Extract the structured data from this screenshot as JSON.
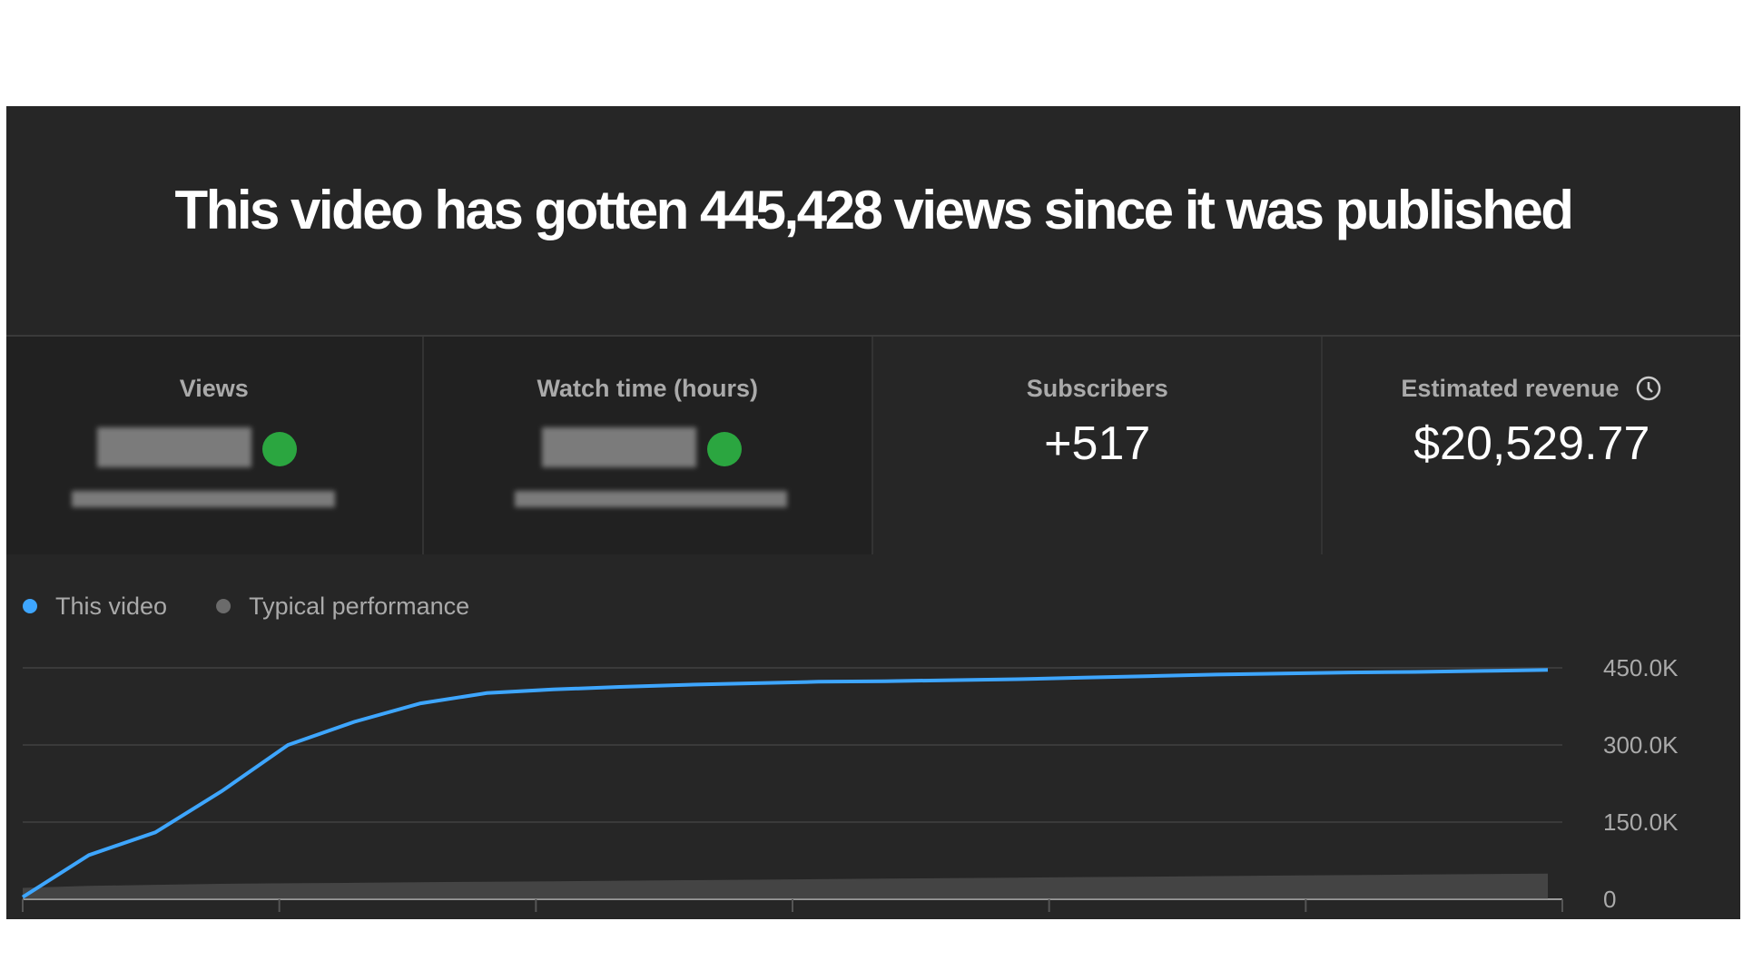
{
  "header": {
    "title": "This video has gotten 445,428 views since it was published"
  },
  "metrics": [
    {
      "label": "Views"
    },
    {
      "label": "Watch time (hours)"
    },
    {
      "label": "Subscribers",
      "value": "+517"
    },
    {
      "label": "Estimated revenue",
      "value": "$20,529.77"
    }
  ],
  "chart_data": {
    "type": "line",
    "categories": [
      null,
      null,
      null,
      null,
      null,
      null,
      null,
      null,
      null,
      null,
      null,
      null,
      null,
      null,
      null,
      null,
      null,
      null,
      null,
      null,
      null,
      null,
      null,
      null
    ],
    "series": [
      {
        "name": "This video",
        "color": "#3ea6ff",
        "values": [
          4000,
          86000,
          130000,
          210000,
          300000,
          345000,
          381000,
          401000,
          408000,
          413000,
          417000,
          420000,
          423000,
          424000,
          426000,
          428000,
          431000,
          434000,
          437000,
          439000,
          441000,
          442000,
          444000,
          446000
        ]
      },
      {
        "name": "Typical performance",
        "color": "#6b6b6b",
        "values": [
          22000,
          26000,
          28000,
          30000,
          31000,
          32000,
          33000,
          34000,
          35000,
          36000,
          37000,
          38000,
          39000,
          40000,
          41000,
          42000,
          43000,
          44000,
          45000,
          46000,
          47000,
          48000,
          49000,
          50000
        ]
      }
    ],
    "ylim": [
      0,
      450000
    ],
    "yticks": [
      0,
      {
        "value": 150000,
        "label": "150.0K"
      },
      {
        "value": 300000,
        "label": "300.0K"
      },
      {
        "value": 450000,
        "label": "450.0K"
      }
    ],
    "grid": true
  }
}
